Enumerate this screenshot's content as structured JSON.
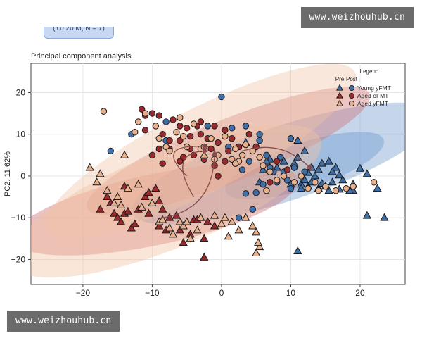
{
  "watermark": {
    "top_text": "www.weizhouhub.cn",
    "bottom_text": "www.weizhouhub.cn"
  },
  "header_chip": {
    "text": "(Y0 20 M, N = 7)"
  },
  "colors": {
    "young_fill": "#3f6fa8",
    "aged_o_fill": "#9b2a2f",
    "aged_y_fill": "#e8b08d",
    "young_ellipse": "#6e98cc",
    "aged_o_ellipse": "#cf6e6e",
    "aged_y_ellipse": "#f1c3a4",
    "arrow": "#8a4c4c"
  },
  "chart_data": {
    "type": "scatter",
    "title": "Principal component analysis",
    "xlabel": "",
    "ylabel": "PC2: 11.62%",
    "xlim": [
      -27.5,
      26.5
    ],
    "ylim": [
      -26,
      27
    ],
    "xticks": [
      -20,
      -10,
      0,
      10,
      20
    ],
    "yticks": [
      -20,
      -10,
      0,
      10,
      20
    ],
    "grid": true,
    "legend": {
      "title": "Legend",
      "pre_label": "Pre",
      "post_label": "Post",
      "placement": "top-right",
      "entries": [
        "Young yFMT",
        "Aged oFMT",
        "Aged yFMT"
      ]
    },
    "ellipses": [
      {
        "series": "Young yFMT",
        "stage": "post",
        "cx": 9,
        "cy": 3,
        "rx": 23,
        "ry": 9,
        "angle": -18
      },
      {
        "series": "Young yFMT",
        "stage": "pre",
        "cx": 12,
        "cy": 2.5,
        "rx": 12,
        "ry": 5.5,
        "angle": -18
      },
      {
        "series": "Aged oFMT",
        "stage": "post",
        "cx": 1,
        "cy": 6,
        "rx": 22,
        "ry": 7.5,
        "angle": -22
      },
      {
        "series": "Aged oFMT",
        "stage": "pre",
        "cx": -9.5,
        "cy": -8,
        "rx": 21,
        "ry": 8.5,
        "angle": -12
      },
      {
        "series": "Aged yFMT",
        "stage": "post",
        "cx": -3,
        "cy": 6,
        "rx": 25,
        "ry": 10,
        "angle": -27
      },
      {
        "series": "Aged yFMT",
        "stage": "pre",
        "cx": -8,
        "cy": -6,
        "rx": 24,
        "ry": 11.5,
        "angle": -22
      }
    ],
    "arrows": [
      {
        "from": [
          -8.5,
          -10
        ],
        "ctrl": [
          -1,
          -8
        ],
        "to": [
          -1,
          6
        ]
      },
      {
        "from": [
          -4,
          -5
        ],
        "ctrl": [
          -8,
          6
        ],
        "to": [
          -2,
          6
        ]
      },
      {
        "from": [
          -4,
          -5
        ],
        "ctrl": [
          -8,
          6
        ],
        "to": [
          -2,
          6
        ]
      },
      {
        "from": [
          3,
          6
        ],
        "ctrl": [
          9,
          9
        ],
        "to": [
          13,
          1.5
        ]
      },
      {
        "from": [
          -5,
          0
        ],
        "ctrl": [
          -10,
          8
        ],
        "to": [
          -2,
          7
        ]
      }
    ],
    "series": [
      {
        "name": "Young yFMT",
        "color_key": "young_fill",
        "pre": [
          [
            11,
            -18
          ],
          [
            21,
            -9.5
          ],
          [
            23.5,
            -10
          ],
          [
            19,
            -3.5
          ],
          [
            19,
            -2
          ],
          [
            17,
            -3.2
          ],
          [
            18.5,
            -3.5
          ],
          [
            21,
            0.5
          ],
          [
            20,
            1.8
          ],
          [
            22.5,
            -3
          ],
          [
            16.5,
            2
          ],
          [
            15.5,
            3.5
          ],
          [
            14.5,
            3
          ],
          [
            17,
            0.2
          ],
          [
            16,
            -1.5
          ],
          [
            15.5,
            -3.5
          ],
          [
            14,
            -3
          ],
          [
            12.5,
            -2.5
          ],
          [
            11.5,
            -2
          ],
          [
            10,
            -2
          ],
          [
            13,
            -1.5
          ],
          [
            12.5,
            0.8
          ],
          [
            14,
            1.5
          ],
          [
            13,
            2
          ],
          [
            11,
            4.5
          ],
          [
            12,
            6
          ],
          [
            11,
            8.5
          ],
          [
            10.5,
            3
          ],
          [
            9,
            3.5
          ],
          [
            8,
            2
          ],
          [
            7,
            4
          ],
          [
            6.5,
            3.5
          ],
          [
            3.5,
            8
          ],
          [
            13.5,
            0
          ],
          [
            14.5,
            -1.8
          ],
          [
            11.5,
            -3
          ],
          [
            12,
            -1
          ],
          [
            15,
            -2.5
          ],
          [
            16,
            1
          ],
          [
            17.5,
            -1
          ],
          [
            5.5,
            -1.5
          ],
          [
            6,
            1.5
          ]
        ],
        "post": [
          [
            0,
            19
          ],
          [
            -13,
            10
          ],
          [
            -8,
            13
          ],
          [
            -2,
            12
          ],
          [
            1.5,
            11.5
          ],
          [
            3.5,
            12
          ],
          [
            5.5,
            8.5
          ],
          [
            1,
            7
          ],
          [
            3,
            1.5
          ],
          [
            6.5,
            5
          ],
          [
            7,
            2
          ],
          [
            7.5,
            1
          ],
          [
            9,
            1
          ],
          [
            9.5,
            -1
          ],
          [
            10,
            -3
          ],
          [
            8,
            -1.5
          ],
          [
            6,
            -2
          ],
          [
            5,
            -4
          ],
          [
            3.5,
            -4.2
          ],
          [
            2.5,
            -10
          ],
          [
            4.5,
            -8
          ],
          [
            10.5,
            2
          ],
          [
            12,
            1
          ],
          [
            10,
            9
          ],
          [
            8.5,
            4.5
          ],
          [
            5.5,
            10
          ],
          [
            4,
            3.5
          ],
          [
            2,
            3
          ],
          [
            -16,
            6
          ],
          [
            -8,
            8.5
          ]
        ]
      },
      {
        "name": "Aged oFMT",
        "color_key": "aged_o_fill",
        "pre": [
          [
            -17.5,
            -8
          ],
          [
            -16.5,
            -5
          ],
          [
            -16,
            -6.5
          ],
          [
            -15.5,
            -9
          ],
          [
            -15,
            -10
          ],
          [
            -14.5,
            -11
          ],
          [
            -14,
            -9
          ],
          [
            -13.5,
            -8.5
          ],
          [
            -13,
            -12.5
          ],
          [
            -12.5,
            -11.5
          ],
          [
            -11,
            -5
          ],
          [
            -10.5,
            -4
          ],
          [
            -9.5,
            -3
          ],
          [
            -9,
            -6
          ],
          [
            -8.5,
            -8
          ],
          [
            -9,
            -12
          ],
          [
            -8,
            -13
          ],
          [
            -7.5,
            -10
          ],
          [
            -6.5,
            -9.5
          ],
          [
            -6,
            -13
          ],
          [
            -5.5,
            -16
          ],
          [
            -4.5,
            -14
          ],
          [
            -4,
            -10.5
          ],
          [
            -3.5,
            -10.5
          ],
          [
            -2,
            -11
          ],
          [
            -2.5,
            -15
          ],
          [
            -2.5,
            -19.5
          ],
          [
            -1,
            -12
          ],
          [
            -12,
            -8
          ],
          [
            -10.5,
            -9
          ],
          [
            -14,
            -2.5
          ]
        ],
        "post": [
          [
            -11.5,
            16
          ],
          [
            -11,
            14.5
          ],
          [
            -10,
            15
          ],
          [
            -9,
            14.5
          ],
          [
            -8.5,
            10
          ],
          [
            -7,
            13.5
          ],
          [
            -6,
            12
          ],
          [
            -5,
            11.5
          ],
          [
            -4.5,
            9.5
          ],
          [
            -3.5,
            12
          ],
          [
            -3,
            10
          ],
          [
            -2,
            9
          ],
          [
            -1,
            12
          ],
          [
            -0.5,
            8
          ],
          [
            0.5,
            11
          ],
          [
            1,
            6
          ],
          [
            1.5,
            9
          ],
          [
            2.5,
            7
          ],
          [
            -8.5,
            3
          ],
          [
            -7.5,
            6.5
          ],
          [
            -10,
            5
          ],
          [
            -9,
            6.5
          ],
          [
            -5.5,
            4.5
          ],
          [
            -4,
            5
          ],
          [
            -2.5,
            4
          ],
          [
            -1.5,
            6.5
          ],
          [
            -6,
            8.5
          ],
          [
            -4.5,
            6.5
          ],
          [
            -1,
            2.5
          ],
          [
            -6,
            3.5
          ],
          [
            4,
            10
          ],
          [
            5,
            7
          ],
          [
            7,
            -1.5
          ],
          [
            8,
            3.5
          ],
          [
            9.5,
            1.5
          ],
          [
            -0.5,
            0
          ],
          [
            0.5,
            3.5
          ],
          [
            -7.5,
            8.5
          ],
          [
            -3,
            13
          ],
          [
            -11,
            11
          ]
        ]
      },
      {
        "name": "Aged yFMT",
        "color_key": "aged_y_fill",
        "pre": [
          [
            -19,
            2
          ],
          [
            -18,
            -1.5
          ],
          [
            -17.5,
            0.5
          ],
          [
            -16.5,
            -3.5
          ],
          [
            -15.5,
            -6.5
          ],
          [
            -15,
            -5
          ],
          [
            -14.5,
            -7
          ],
          [
            -13.5,
            -3
          ],
          [
            -14,
            5
          ],
          [
            -12,
            -2
          ],
          [
            -11.5,
            -7.5
          ],
          [
            -10,
            -6.5
          ],
          [
            -9,
            -11
          ],
          [
            -8.5,
            -10.5
          ],
          [
            -7.5,
            -12.5
          ],
          [
            -7,
            -14
          ],
          [
            -6,
            -11
          ],
          [
            -5.5,
            -12
          ],
          [
            -5,
            -11
          ],
          [
            -4.5,
            -15
          ],
          [
            -3.5,
            -13
          ],
          [
            -1,
            -9.5
          ],
          [
            0,
            -11.5
          ],
          [
            1,
            -14.5
          ],
          [
            1.5,
            -11
          ],
          [
            2.5,
            -13
          ],
          [
            3.5,
            -10
          ],
          [
            4.5,
            -12
          ],
          [
            5,
            -13.5
          ],
          [
            5.5,
            -17
          ],
          [
            5.3,
            -16
          ],
          [
            5,
            -18.5
          ],
          [
            0.5,
            -10
          ],
          [
            -3,
            -10
          ],
          [
            -2.5,
            5
          ]
        ],
        "post": [
          [
            -17,
            15.5
          ],
          [
            -12.5,
            10.5
          ],
          [
            -12,
            13
          ],
          [
            -11,
            15
          ],
          [
            -9.5,
            12
          ],
          [
            -9,
            9
          ],
          [
            -8,
            7
          ],
          [
            -7.5,
            6
          ],
          [
            -6.5,
            10.5
          ],
          [
            -6,
            14
          ],
          [
            -5.5,
            9.5
          ],
          [
            -5,
            7
          ],
          [
            -4,
            12.5
          ],
          [
            -3,
            6.5
          ],
          [
            -2.5,
            7
          ],
          [
            -1.5,
            9
          ],
          [
            -0.5,
            5
          ],
          [
            0.5,
            9.5
          ],
          [
            1.5,
            4
          ],
          [
            2,
            6.5
          ],
          [
            2.5,
            3.5
          ],
          [
            3,
            5
          ],
          [
            3.5,
            7.5
          ],
          [
            4.5,
            6
          ],
          [
            5.5,
            4.5
          ],
          [
            6,
            2.5
          ],
          [
            7,
            1
          ],
          [
            8,
            -1
          ],
          [
            9,
            0
          ],
          [
            10.5,
            -1.5
          ],
          [
            11.5,
            0
          ],
          [
            12.5,
            -3
          ],
          [
            13.5,
            -1.5
          ],
          [
            14,
            -3.5
          ],
          [
            15,
            -2.5
          ],
          [
            16.5,
            -3.5
          ],
          [
            18,
            -3
          ],
          [
            19,
            -2.5
          ],
          [
            22,
            -1.5
          ],
          [
            6.5,
            -3.5
          ],
          [
            2,
            3
          ],
          [
            -1,
            4
          ]
        ]
      }
    ]
  }
}
